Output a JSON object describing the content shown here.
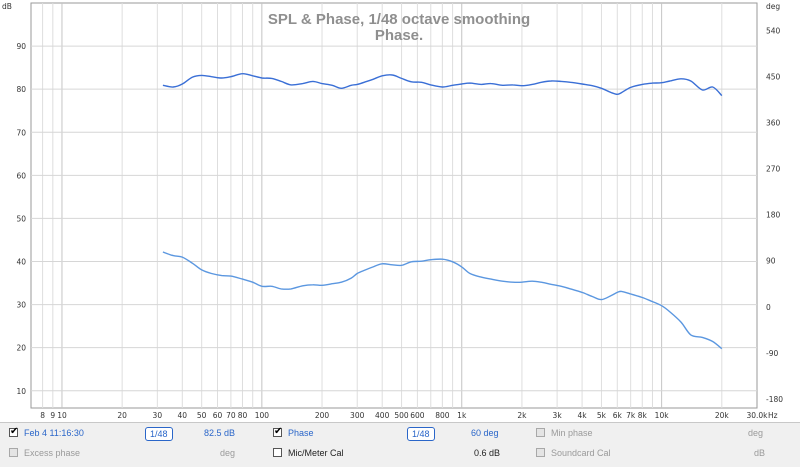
{
  "chart_data": {
    "type": "line",
    "title": "SPL & Phase, 1/48 octave smoothing",
    "subtitle": "Phase.",
    "left_unit": "dB",
    "right_unit": "deg",
    "x_unit": "Hz",
    "x_scale": "log",
    "xlim": [
      7,
      30000
    ],
    "ylim_left": [
      6,
      100
    ],
    "ylim_right": [
      -198,
      594
    ],
    "x_ticks": [
      {
        "v": 8,
        "t": "8"
      },
      {
        "v": 9,
        "t": "9"
      },
      {
        "v": 10,
        "t": "10"
      },
      {
        "v": 20,
        "t": "20"
      },
      {
        "v": 30,
        "t": "30"
      },
      {
        "v": 40,
        "t": "40"
      },
      {
        "v": 50,
        "t": "50"
      },
      {
        "v": 60,
        "t": "60"
      },
      {
        "v": 70,
        "t": "70"
      },
      {
        "v": 80,
        "t": "80"
      },
      {
        "v": 100,
        "t": "100"
      },
      {
        "v": 200,
        "t": "200"
      },
      {
        "v": 300,
        "t": "300"
      },
      {
        "v": 400,
        "t": "400"
      },
      {
        "v": 500,
        "t": "500"
      },
      {
        "v": 600,
        "t": "600"
      },
      {
        "v": 800,
        "t": "800"
      },
      {
        "v": 1000,
        "t": "1k"
      },
      {
        "v": 2000,
        "t": "2k"
      },
      {
        "v": 3000,
        "t": "3k"
      },
      {
        "v": 4000,
        "t": "4k"
      },
      {
        "v": 5000,
        "t": "5k"
      },
      {
        "v": 6000,
        "t": "6k"
      },
      {
        "v": 7000,
        "t": "7k"
      },
      {
        "v": 8000,
        "t": "8k"
      },
      {
        "v": 10000,
        "t": "10k"
      },
      {
        "v": 20000,
        "t": "20k"
      },
      {
        "v": 30000,
        "t": "30.0k"
      }
    ],
    "left_ticks": [
      {
        "v": 90,
        "t": "90"
      },
      {
        "v": 80,
        "t": "80"
      },
      {
        "v": 70,
        "t": "70"
      },
      {
        "v": 60,
        "t": "60"
      },
      {
        "v": 50,
        "t": "50"
      },
      {
        "v": 40,
        "t": "40"
      },
      {
        "v": 30,
        "t": "30"
      },
      {
        "v": 20,
        "t": "20"
      },
      {
        "v": 10,
        "t": "10"
      }
    ],
    "right_ticks": [
      {
        "v": 540,
        "t": "540"
      },
      {
        "v": 450,
        "t": "450"
      },
      {
        "v": 360,
        "t": "360"
      },
      {
        "v": 270,
        "t": "270"
      },
      {
        "v": 180,
        "t": "180"
      },
      {
        "v": 90,
        "t": "90"
      },
      {
        "v": 0,
        "t": "0"
      },
      {
        "v": -90,
        "t": "-90"
      },
      {
        "v": -180,
        "t": "-180"
      }
    ],
    "series": [
      {
        "name": "Feb 4 11:16:30",
        "axis": "left",
        "color": "#3a6fd6",
        "x": [
          32,
          36,
          40,
          45,
          50,
          56,
          63,
          70,
          80,
          90,
          100,
          112,
          125,
          140,
          160,
          180,
          200,
          225,
          250,
          280,
          300,
          330,
          360,
          400,
          450,
          500,
          560,
          630,
          700,
          800,
          900,
          1000,
          1100,
          1250,
          1400,
          1600,
          1800,
          2000,
          2250,
          2500,
          2800,
          3150,
          3500,
          4000,
          4500,
          5000,
          5600,
          6000,
          6300,
          7000,
          8000,
          9000,
          10000,
          11000,
          12500,
          14000,
          16000,
          18000,
          20000
        ],
        "values": [
          80.9,
          80.5,
          81.2,
          82.8,
          83.2,
          82.9,
          82.6,
          82.9,
          83.6,
          83.1,
          82.6,
          82.5,
          81.8,
          81.0,
          81.3,
          81.8,
          81.3,
          80.9,
          80.2,
          80.9,
          81.1,
          81.7,
          82.3,
          83.1,
          83.3,
          82.5,
          81.7,
          81.6,
          81.0,
          80.5,
          80.9,
          81.2,
          81.4,
          81.1,
          81.3,
          80.9,
          81.0,
          80.8,
          81.1,
          81.6,
          81.9,
          81.8,
          81.6,
          81.2,
          80.8,
          80.2,
          79.2,
          78.8,
          79.2,
          80.4,
          81.1,
          81.4,
          81.5,
          81.9,
          82.4,
          81.9,
          79.8,
          80.5,
          78.5
        ]
      },
      {
        "name": "Phase",
        "axis": "right",
        "color": "#5b97e0",
        "x": [
          32,
          36,
          40,
          45,
          50,
          56,
          63,
          70,
          80,
          90,
          100,
          112,
          125,
          140,
          160,
          180,
          200,
          225,
          250,
          280,
          300,
          330,
          360,
          400,
          450,
          500,
          560,
          630,
          700,
          800,
          900,
          1000,
          1100,
          1250,
          1400,
          1600,
          1800,
          2000,
          2250,
          2500,
          2800,
          3150,
          3500,
          4000,
          4500,
          5000,
          5600,
          6000,
          6300,
          7000,
          8000,
          9000,
          10000,
          11000,
          12500,
          14000,
          16000,
          18000,
          20000
        ],
        "values": [
          107,
          100,
          97,
          85,
          72,
          65,
          61,
          60,
          54,
          48,
          40,
          40,
          35,
          35,
          41,
          43,
          42,
          45,
          48,
          56,
          65,
          72,
          78,
          84,
          82,
          81,
          88,
          89,
          92,
          93,
          88,
          78,
          65,
          58,
          54,
          50,
          48,
          48,
          50,
          48,
          44,
          40,
          35,
          28,
          20,
          14,
          22,
          28,
          30,
          25,
          18,
          10,
          2,
          -10,
          -30,
          -55,
          -60,
          -68,
          -82
        ]
      }
    ]
  },
  "controls": {
    "row1": {
      "spl_checked": "✔",
      "spl_name": "Feb 4 11:16:30",
      "spl_smoothing": "1/48",
      "spl_value": "82.5 dB",
      "phase_checked": "✔",
      "phase_name": "Phase",
      "phase_smoothing": "1/48",
      "phase_value": "60 deg",
      "minphase_name": "Min phase",
      "minphase_unit": "deg"
    },
    "row2": {
      "excess_name": "Excess phase",
      "excess_unit": "deg",
      "micmeter_name": "Mic/Meter Cal",
      "micmeter_value": "0.6 dB",
      "soundcard_name": "Soundcard Cal",
      "soundcard_unit": "dB"
    }
  }
}
